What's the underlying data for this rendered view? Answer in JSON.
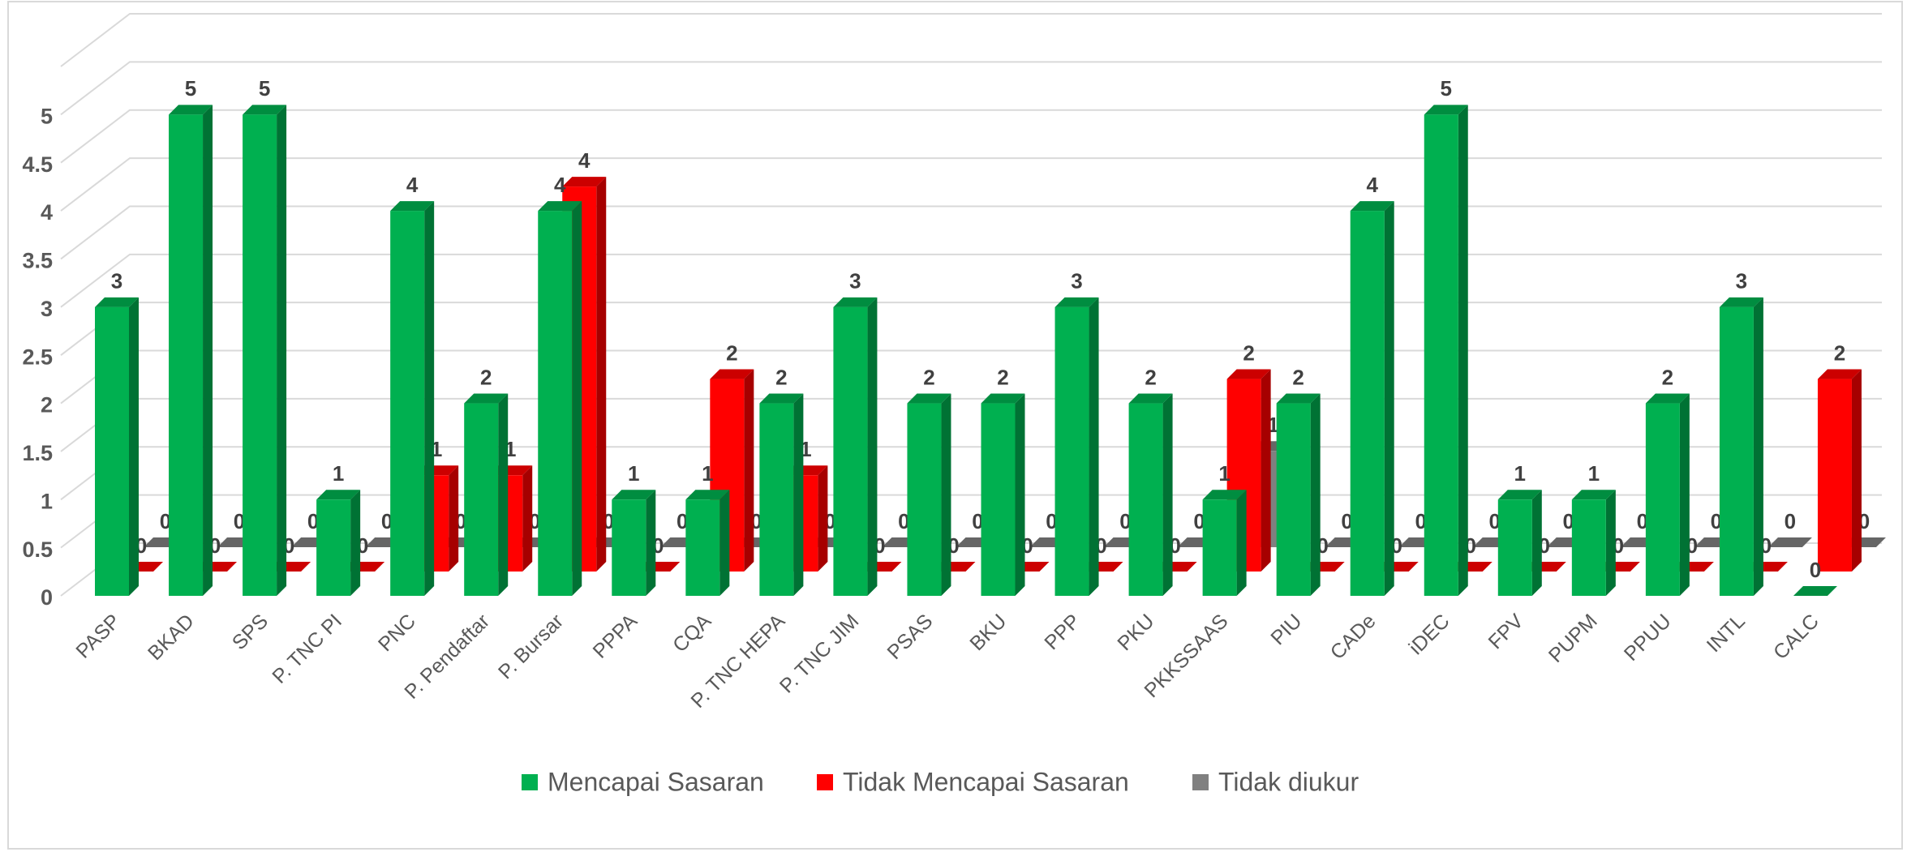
{
  "chart_data": {
    "type": "bar3d",
    "categories": [
      "PASP",
      "BKAD",
      "SPS",
      "P. TNC PI",
      "PNC",
      "P. Pendaftar",
      "P. Bursar",
      "PPPA",
      "CQA",
      "P. TNC HEPA",
      "P. TNC JIM",
      "PSAS",
      "BKU",
      "PPP",
      "PKU",
      "PKKSSAAS",
      "PIU",
      "CADe",
      "iDEC",
      "FPV",
      "PUPM",
      "PPUU",
      "INTL",
      "CALC"
    ],
    "series": [
      {
        "name": "Mencapai Sasaran",
        "color": "#00b050",
        "values": [
          3,
          5,
          5,
          1,
          4,
          2,
          4,
          1,
          1,
          2,
          3,
          2,
          2,
          3,
          2,
          1,
          2,
          4,
          5,
          1,
          1,
          2,
          3,
          0
        ]
      },
      {
        "name": "Tidak Mencapai Sasaran",
        "color": "#ff0000",
        "values": [
          0,
          0,
          0,
          0,
          1,
          1,
          4,
          0,
          2,
          1,
          0,
          0,
          0,
          0,
          0,
          2,
          0,
          0,
          0,
          0,
          0,
          0,
          0,
          2
        ]
      },
      {
        "name": "Tidak diukur",
        "color": "#808080",
        "values": [
          0,
          0,
          0,
          0,
          0,
          0,
          0,
          0,
          0,
          0,
          0,
          0,
          0,
          0,
          0,
          1,
          0,
          0,
          0,
          0,
          0,
          0,
          0,
          0
        ]
      }
    ],
    "ylim": [
      0,
      5.5
    ],
    "yticks": [
      0,
      0.5,
      1,
      1.5,
      2,
      2.5,
      3,
      3.5,
      4,
      4.5,
      5
    ],
    "grid": true,
    "legend": "bottom"
  }
}
